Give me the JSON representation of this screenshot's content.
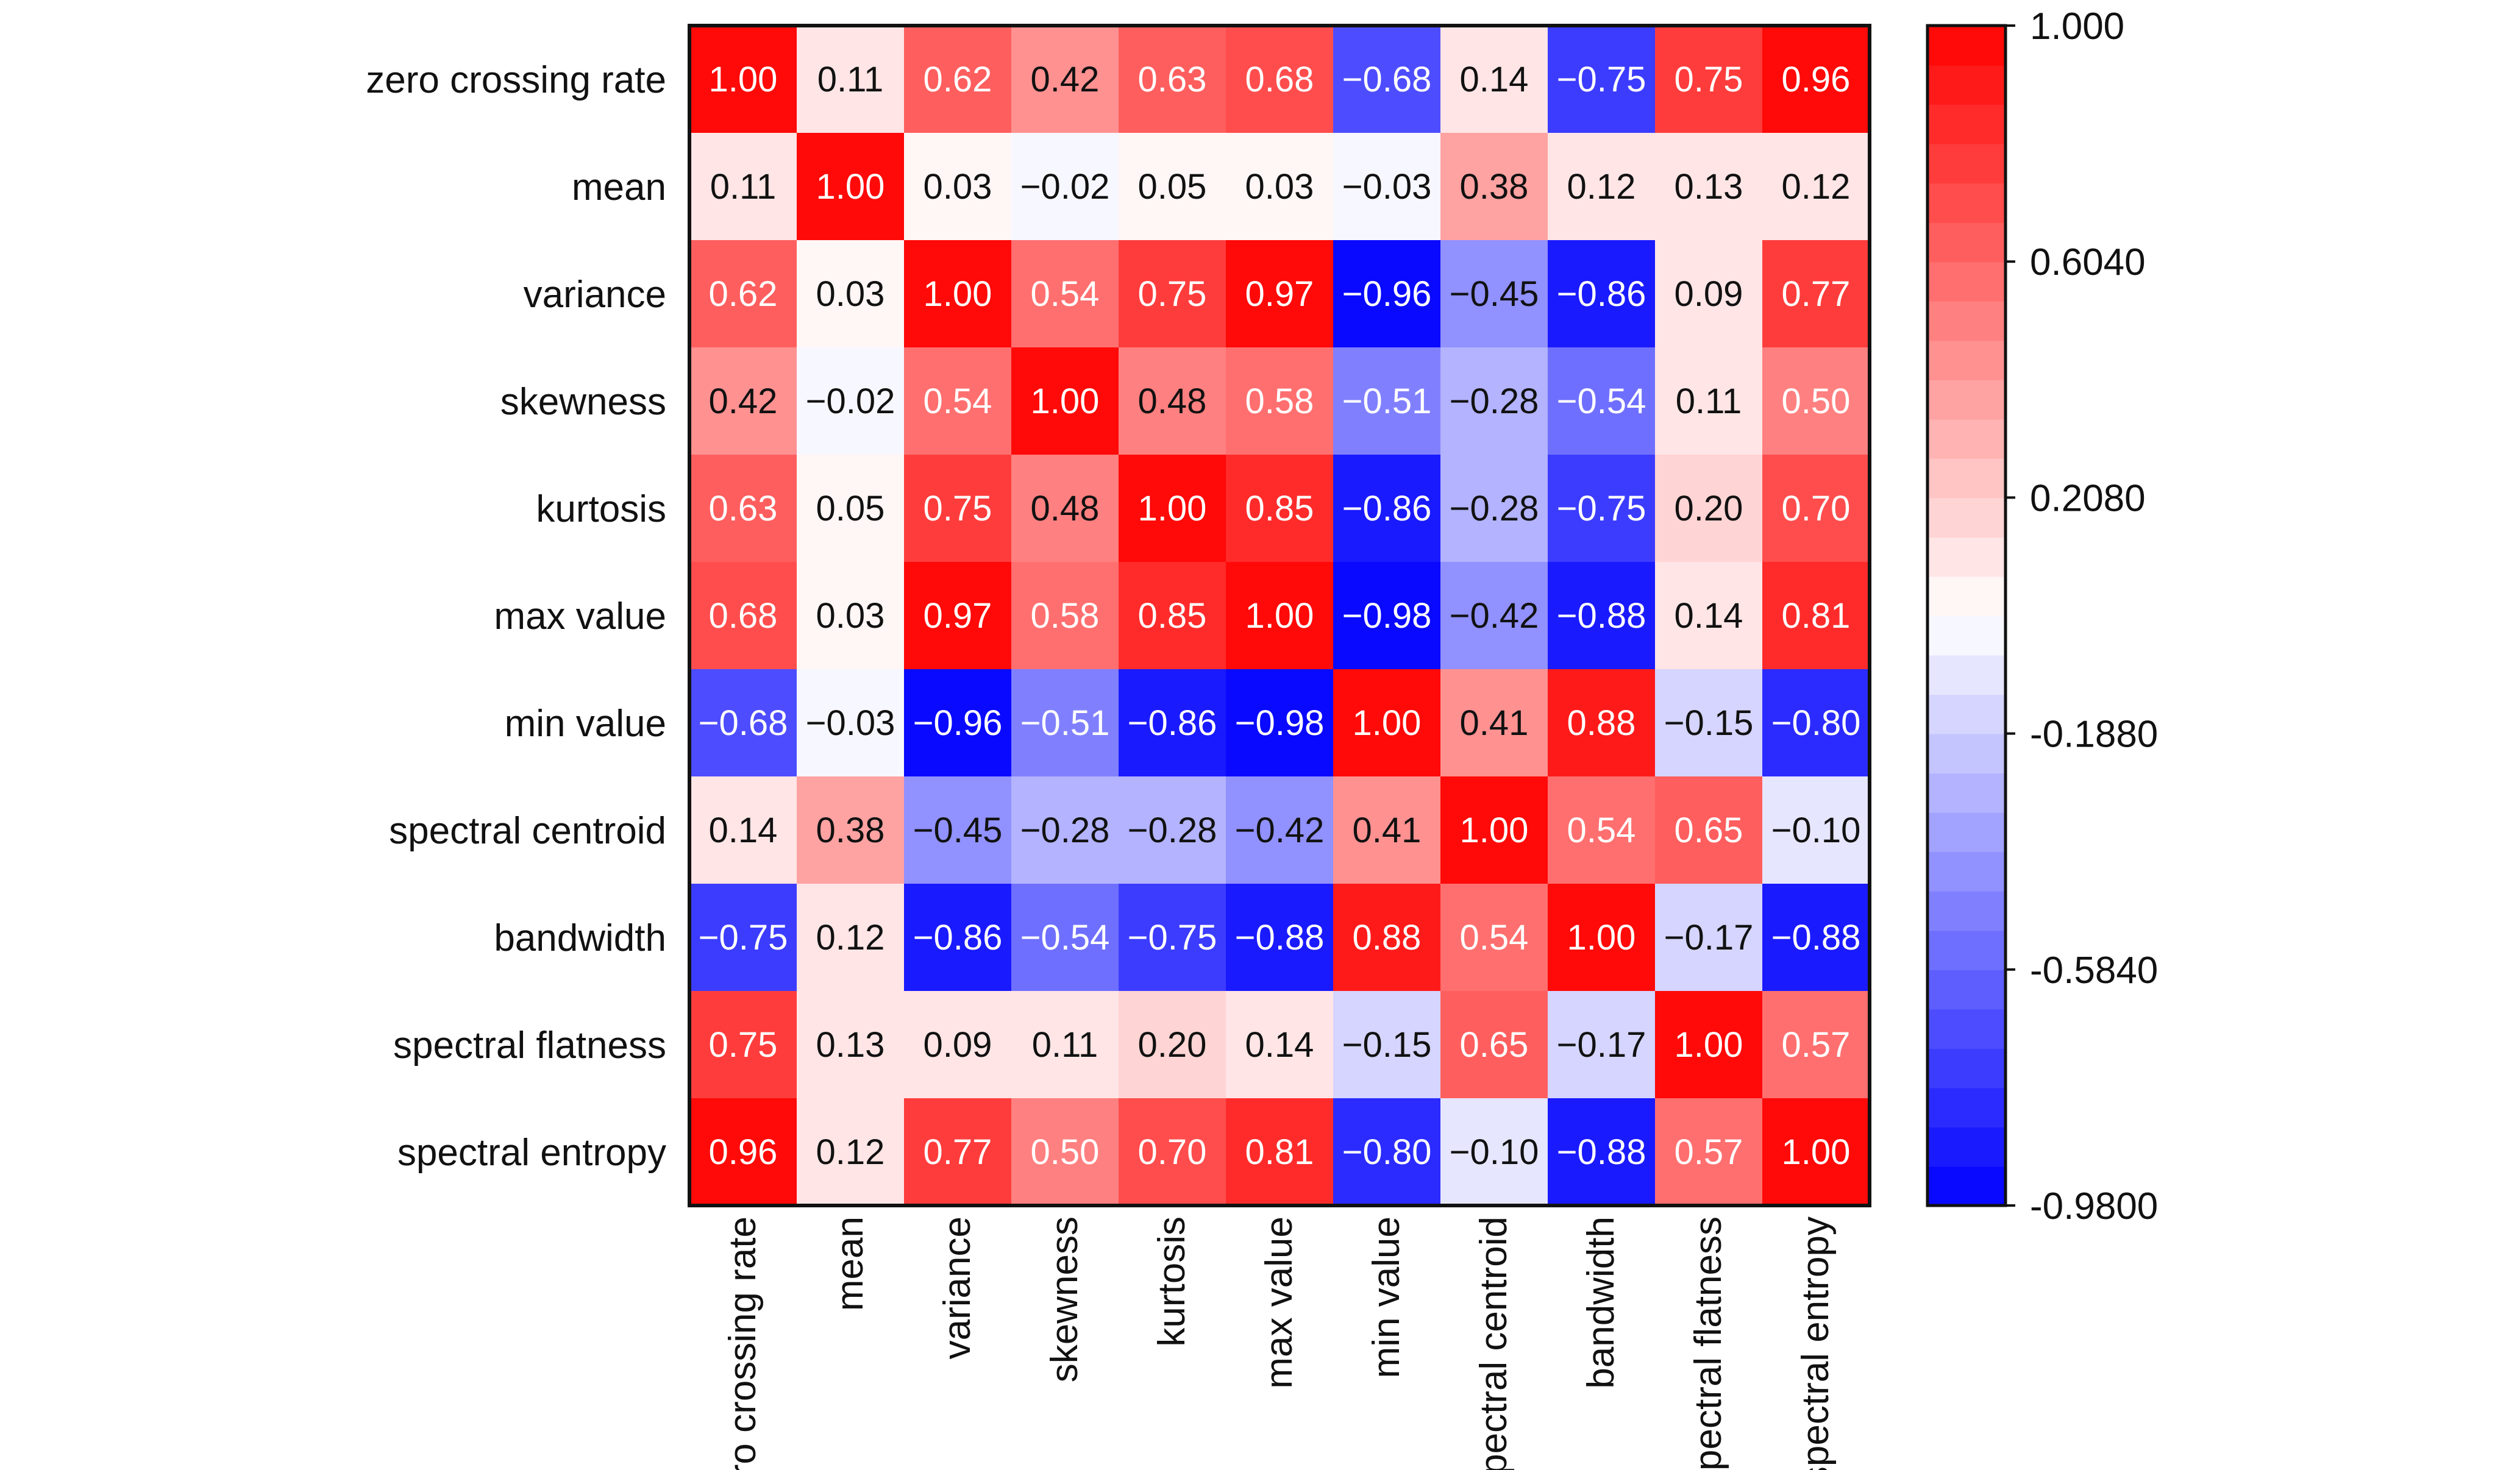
{
  "chart_data": {
    "type": "heatmap",
    "title": "",
    "xlabel": "",
    "ylabel": "",
    "labels": [
      "zero crossing rate",
      "mean",
      "variance",
      "skewness",
      "kurtosis",
      "max value",
      "min value",
      "spectral centroid",
      "bandwidth",
      "spectral flatness",
      "spectral entropy"
    ],
    "values": [
      [
        1.0,
        0.11,
        0.62,
        0.42,
        0.63,
        0.68,
        -0.68,
        0.14,
        -0.75,
        0.75,
        0.96
      ],
      [
        0.11,
        1.0,
        0.03,
        -0.02,
        0.05,
        0.03,
        -0.03,
        0.38,
        0.12,
        0.13,
        0.12
      ],
      [
        0.62,
        0.03,
        1.0,
        0.54,
        0.75,
        0.97,
        -0.96,
        -0.45,
        -0.86,
        0.09,
        0.77
      ],
      [
        0.42,
        -0.02,
        0.54,
        1.0,
        0.48,
        0.58,
        -0.51,
        -0.28,
        -0.54,
        0.11,
        0.5
      ],
      [
        0.63,
        0.05,
        0.75,
        0.48,
        1.0,
        0.85,
        -0.86,
        -0.28,
        -0.75,
        0.2,
        0.7
      ],
      [
        0.68,
        0.03,
        0.97,
        0.58,
        0.85,
        1.0,
        -0.98,
        -0.42,
        -0.88,
        0.14,
        0.81
      ],
      [
        -0.68,
        -0.03,
        -0.96,
        -0.51,
        -0.86,
        -0.98,
        1.0,
        0.41,
        0.88,
        -0.15,
        -0.8
      ],
      [
        0.14,
        0.38,
        -0.45,
        -0.28,
        -0.28,
        -0.42,
        0.41,
        1.0,
        0.54,
        0.65,
        -0.1
      ],
      [
        -0.75,
        0.12,
        -0.86,
        -0.54,
        -0.75,
        -0.88,
        0.88,
        0.54,
        1.0,
        -0.17,
        -0.88
      ],
      [
        0.75,
        0.13,
        0.09,
        0.11,
        0.2,
        0.14,
        -0.15,
        0.65,
        -0.17,
        1.0,
        0.57
      ],
      [
        0.96,
        0.12,
        0.77,
        0.5,
        0.7,
        0.81,
        -0.8,
        -0.1,
        -0.88,
        0.57,
        1.0
      ]
    ],
    "value_format": "2 decimals",
    "colorscale": {
      "min": -0.98,
      "max": 1.0,
      "low_color": "#0000ff",
      "mid_color": "#ffffff",
      "high_color": "#ff0000",
      "levels": 30
    },
    "colorbar_ticks": [
      "1.000",
      "0.6040",
      "0.2080",
      "-0.1880",
      "-0.5840",
      "-0.9800"
    ],
    "colorbar_tick_values": [
      1.0,
      0.604,
      0.208,
      -0.188,
      -0.584,
      -0.98
    ],
    "grid": false,
    "legend": "colorbar right"
  }
}
